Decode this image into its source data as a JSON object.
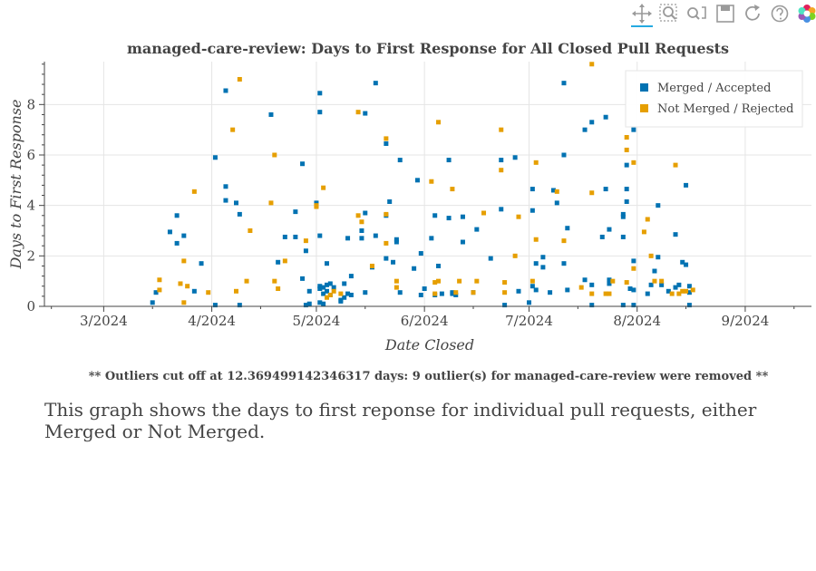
{
  "toolbar": {
    "tools": [
      {
        "name": "pan-tool",
        "icon": "move-arrows-icon",
        "active": true
      },
      {
        "name": "box-zoom-tool",
        "icon": "box-zoom-icon",
        "active": false
      },
      {
        "name": "wheel-zoom-tool",
        "icon": "wheel-zoom-icon",
        "active": false
      },
      {
        "name": "save-tool",
        "icon": "floppy-disk-icon",
        "active": false
      },
      {
        "name": "reset-tool",
        "icon": "reset-arrow-icon",
        "active": false
      },
      {
        "name": "help-tool",
        "icon": "help-circle-icon",
        "active": false
      },
      {
        "name": "bokeh-logo",
        "icon": "bokeh-logo-icon",
        "active": false
      }
    ]
  },
  "chart_data": {
    "type": "scatter",
    "title": "managed-care-review: Days to First Response for All Closed Pull Requests",
    "xlabel": "Date Closed",
    "ylabel": "Days to First Response",
    "xlim": [
      "2024-02-13",
      "2024-09-20"
    ],
    "ylim": [
      0,
      9.7
    ],
    "x_ticks": [
      {
        "date": "2024-03-01",
        "label": "3/2024"
      },
      {
        "date": "2024-04-01",
        "label": "4/2024"
      },
      {
        "date": "2024-05-01",
        "label": "5/2024"
      },
      {
        "date": "2024-06-01",
        "label": "6/2024"
      },
      {
        "date": "2024-07-01",
        "label": "7/2024"
      },
      {
        "date": "2024-08-01",
        "label": "8/2024"
      },
      {
        "date": "2024-09-01",
        "label": "9/2024"
      }
    ],
    "y_ticks": [
      0,
      2,
      4,
      6,
      8
    ],
    "grid": true,
    "legend_position": "top-right",
    "series": [
      {
        "name": "Merged / Accepted",
        "color": "#0072b2",
        "points": [
          [
            "2024-03-15",
            0.15
          ],
          [
            "2024-03-16",
            0.55
          ],
          [
            "2024-03-20",
            2.95
          ],
          [
            "2024-03-22",
            2.5
          ],
          [
            "2024-03-22",
            3.6
          ],
          [
            "2024-03-24",
            2.8
          ],
          [
            "2024-03-27",
            0.6
          ],
          [
            "2024-03-29",
            1.7
          ],
          [
            "2024-04-02",
            0.05
          ],
          [
            "2024-04-02",
            5.9
          ],
          [
            "2024-04-05",
            8.55
          ],
          [
            "2024-04-05",
            4.75
          ],
          [
            "2024-04-05",
            4.2
          ],
          [
            "2024-04-08",
            4.1
          ],
          [
            "2024-04-09",
            3.65
          ],
          [
            "2024-04-09",
            0.05
          ],
          [
            "2024-04-18",
            7.6
          ],
          [
            "2024-04-20",
            1.75
          ],
          [
            "2024-04-22",
            2.75
          ],
          [
            "2024-04-25",
            3.75
          ],
          [
            "2024-04-25",
            2.75
          ],
          [
            "2024-04-27",
            5.65
          ],
          [
            "2024-04-27",
            1.1
          ],
          [
            "2024-04-28",
            2.2
          ],
          [
            "2024-04-28",
            0.05
          ],
          [
            "2024-04-29",
            0.1
          ],
          [
            "2024-04-29",
            0.6
          ],
          [
            "2024-05-01",
            4.1
          ],
          [
            "2024-05-02",
            8.45
          ],
          [
            "2024-05-02",
            7.7
          ],
          [
            "2024-05-02",
            2.8
          ],
          [
            "2024-05-02",
            0.8
          ],
          [
            "2024-05-02",
            0.7
          ],
          [
            "2024-05-02",
            0.15
          ],
          [
            "2024-05-03",
            0.75
          ],
          [
            "2024-05-03",
            0.5
          ],
          [
            "2024-05-03",
            0.1
          ],
          [
            "2024-05-04",
            1.7
          ],
          [
            "2024-05-04",
            0.85
          ],
          [
            "2024-05-04",
            0.6
          ],
          [
            "2024-05-05",
            0.9
          ],
          [
            "2024-05-05",
            0.45
          ],
          [
            "2024-05-06",
            0.75
          ],
          [
            "2024-05-08",
            0.25
          ],
          [
            "2024-05-08",
            0.2
          ],
          [
            "2024-05-09",
            0.9
          ],
          [
            "2024-05-09",
            0.35
          ],
          [
            "2024-05-10",
            2.7
          ],
          [
            "2024-05-10",
            0.5
          ],
          [
            "2024-05-11",
            1.2
          ],
          [
            "2024-05-11",
            0.45
          ],
          [
            "2024-05-14",
            2.7
          ],
          [
            "2024-05-14",
            3.0
          ],
          [
            "2024-05-15",
            0.55
          ],
          [
            "2024-05-15",
            7.65
          ],
          [
            "2024-05-15",
            3.7
          ],
          [
            "2024-05-17",
            1.55
          ],
          [
            "2024-05-18",
            8.85
          ],
          [
            "2024-05-18",
            2.8
          ],
          [
            "2024-05-21",
            6.45
          ],
          [
            "2024-05-21",
            1.9
          ],
          [
            "2024-05-21",
            3.6
          ],
          [
            "2024-05-22",
            4.15
          ],
          [
            "2024-05-23",
            1.75
          ],
          [
            "2024-05-24",
            2.65
          ],
          [
            "2024-05-24",
            2.55
          ],
          [
            "2024-05-25",
            5.8
          ],
          [
            "2024-05-25",
            0.55
          ],
          [
            "2024-05-29",
            1.5
          ],
          [
            "2024-05-30",
            5.0
          ],
          [
            "2024-05-31",
            2.1
          ],
          [
            "2024-05-31",
            0.45
          ],
          [
            "2024-06-01",
            0.7
          ],
          [
            "2024-06-03",
            2.7
          ],
          [
            "2024-06-04",
            3.6
          ],
          [
            "2024-06-04",
            0.45
          ],
          [
            "2024-06-05",
            1.6
          ],
          [
            "2024-06-06",
            0.5
          ],
          [
            "2024-06-08",
            5.8
          ],
          [
            "2024-06-08",
            3.5
          ],
          [
            "2024-06-09",
            0.55
          ],
          [
            "2024-06-09",
            0.5
          ],
          [
            "2024-06-10",
            0.45
          ],
          [
            "2024-06-12",
            3.55
          ],
          [
            "2024-06-12",
            2.55
          ],
          [
            "2024-06-15",
            0.55
          ],
          [
            "2024-06-16",
            3.05
          ],
          [
            "2024-06-20",
            1.9
          ],
          [
            "2024-06-23",
            5.8
          ],
          [
            "2024-06-23",
            3.85
          ],
          [
            "2024-06-24",
            0.05
          ],
          [
            "2024-06-27",
            5.9
          ],
          [
            "2024-06-28",
            0.6
          ],
          [
            "2024-07-01",
            0.15
          ],
          [
            "2024-07-02",
            4.65
          ],
          [
            "2024-07-02",
            3.8
          ],
          [
            "2024-07-02",
            0.8
          ],
          [
            "2024-07-03",
            1.7
          ],
          [
            "2024-07-03",
            0.65
          ],
          [
            "2024-07-05",
            1.95
          ],
          [
            "2024-07-05",
            1.55
          ],
          [
            "2024-07-07",
            0.55
          ],
          [
            "2024-07-08",
            4.6
          ],
          [
            "2024-07-09",
            4.1
          ],
          [
            "2024-07-11",
            8.85
          ],
          [
            "2024-07-11",
            6.0
          ],
          [
            "2024-07-11",
            1.7
          ],
          [
            "2024-07-12",
            3.1
          ],
          [
            "2024-07-12",
            0.65
          ],
          [
            "2024-07-17",
            7.0
          ],
          [
            "2024-07-17",
            1.05
          ],
          [
            "2024-07-19",
            7.3
          ],
          [
            "2024-07-19",
            0.85
          ],
          [
            "2024-07-19",
            0.05
          ],
          [
            "2024-07-22",
            2.75
          ],
          [
            "2024-07-23",
            7.5
          ],
          [
            "2024-07-23",
            4.65
          ],
          [
            "2024-07-24",
            3.05
          ],
          [
            "2024-07-24",
            1.05
          ],
          [
            "2024-07-24",
            0.9
          ],
          [
            "2024-07-28",
            2.75
          ],
          [
            "2024-07-28",
            3.65
          ],
          [
            "2024-07-28",
            3.55
          ],
          [
            "2024-07-28",
            0.05
          ],
          [
            "2024-07-29",
            5.6
          ],
          [
            "2024-07-29",
            4.65
          ],
          [
            "2024-07-29",
            4.15
          ],
          [
            "2024-07-30",
            0.7
          ],
          [
            "2024-07-31",
            7.0
          ],
          [
            "2024-07-31",
            1.8
          ],
          [
            "2024-07-31",
            0.65
          ],
          [
            "2024-07-31",
            0.05
          ],
          [
            "2024-08-04",
            0.5
          ],
          [
            "2024-08-05",
            0.85
          ],
          [
            "2024-08-06",
            1.4
          ],
          [
            "2024-08-07",
            4.0
          ],
          [
            "2024-08-07",
            1.95
          ],
          [
            "2024-08-08",
            0.85
          ],
          [
            "2024-08-10",
            0.6
          ],
          [
            "2024-08-12",
            2.85
          ],
          [
            "2024-08-12",
            0.75
          ],
          [
            "2024-08-13",
            0.85
          ],
          [
            "2024-08-14",
            1.75
          ],
          [
            "2024-08-15",
            4.8
          ],
          [
            "2024-08-15",
            1.65
          ],
          [
            "2024-08-16",
            0.8
          ],
          [
            "2024-08-16",
            0.55
          ],
          [
            "2024-08-16",
            0.05
          ]
        ]
      },
      {
        "name": "Not Merged / Rejected",
        "color": "#e69f00",
        "points": [
          [
            "2024-03-17",
            1.05
          ],
          [
            "2024-03-17",
            0.65
          ],
          [
            "2024-03-23",
            0.9
          ],
          [
            "2024-03-24",
            1.8
          ],
          [
            "2024-03-24",
            0.15
          ],
          [
            "2024-03-25",
            0.8
          ],
          [
            "2024-03-27",
            4.55
          ],
          [
            "2024-03-31",
            0.55
          ],
          [
            "2024-04-07",
            7.0
          ],
          [
            "2024-04-08",
            0.6
          ],
          [
            "2024-04-09",
            9.0
          ],
          [
            "2024-04-11",
            1.0
          ],
          [
            "2024-04-12",
            3.0
          ],
          [
            "2024-04-18",
            4.1
          ],
          [
            "2024-04-19",
            6.0
          ],
          [
            "2024-04-19",
            1.0
          ],
          [
            "2024-04-20",
            0.7
          ],
          [
            "2024-04-22",
            1.8
          ],
          [
            "2024-04-28",
            2.6
          ],
          [
            "2024-05-01",
            4.0
          ],
          [
            "2024-05-01",
            3.95
          ],
          [
            "2024-05-03",
            4.7
          ],
          [
            "2024-05-04",
            0.35
          ],
          [
            "2024-05-05",
            0.45
          ],
          [
            "2024-05-06",
            0.6
          ],
          [
            "2024-05-08",
            0.5
          ],
          [
            "2024-05-13",
            7.7
          ],
          [
            "2024-05-13",
            3.6
          ],
          [
            "2024-05-14",
            3.35
          ],
          [
            "2024-05-17",
            1.6
          ],
          [
            "2024-05-21",
            6.65
          ],
          [
            "2024-05-21",
            3.65
          ],
          [
            "2024-05-21",
            2.5
          ],
          [
            "2024-05-24",
            1.0
          ],
          [
            "2024-05-24",
            0.75
          ],
          [
            "2024-06-03",
            4.95
          ],
          [
            "2024-06-04",
            0.95
          ],
          [
            "2024-06-04",
            0.5
          ],
          [
            "2024-06-05",
            7.3
          ],
          [
            "2024-06-05",
            1.0
          ],
          [
            "2024-06-09",
            4.65
          ],
          [
            "2024-06-10",
            0.55
          ],
          [
            "2024-06-11",
            1.0
          ],
          [
            "2024-06-15",
            0.55
          ],
          [
            "2024-06-16",
            1.0
          ],
          [
            "2024-06-18",
            3.7
          ],
          [
            "2024-06-23",
            7.0
          ],
          [
            "2024-06-23",
            5.4
          ],
          [
            "2024-06-24",
            0.95
          ],
          [
            "2024-06-24",
            0.55
          ],
          [
            "2024-06-27",
            2.0
          ],
          [
            "2024-06-28",
            3.55
          ],
          [
            "2024-07-02",
            1.0
          ],
          [
            "2024-07-03",
            5.7
          ],
          [
            "2024-07-03",
            2.65
          ],
          [
            "2024-07-09",
            4.55
          ],
          [
            "2024-07-11",
            2.6
          ],
          [
            "2024-07-16",
            0.75
          ],
          [
            "2024-07-19",
            9.6
          ],
          [
            "2024-07-19",
            4.5
          ],
          [
            "2024-07-19",
            0.5
          ],
          [
            "2024-07-23",
            0.5
          ],
          [
            "2024-07-24",
            0.5
          ],
          [
            "2024-07-25",
            1.0
          ],
          [
            "2024-07-29",
            6.7
          ],
          [
            "2024-07-29",
            6.2
          ],
          [
            "2024-07-29",
            0.95
          ],
          [
            "2024-07-31",
            5.7
          ],
          [
            "2024-07-31",
            1.5
          ],
          [
            "2024-08-03",
            2.95
          ],
          [
            "2024-08-04",
            3.45
          ],
          [
            "2024-08-05",
            2.0
          ],
          [
            "2024-08-06",
            1.0
          ],
          [
            "2024-08-08",
            1.0
          ],
          [
            "2024-08-11",
            0.5
          ],
          [
            "2024-08-12",
            5.6
          ],
          [
            "2024-08-13",
            0.5
          ],
          [
            "2024-08-14",
            0.6
          ],
          [
            "2024-08-15",
            0.6
          ],
          [
            "2024-08-17",
            0.65
          ]
        ]
      }
    ]
  },
  "note": "** Outliers cut off at 12.369499142346317 days: 9 outlier(s) for managed-care-review were removed **",
  "description": "This graph shows the days to first reponse for individual pull requests, either Merged or Not Merged."
}
